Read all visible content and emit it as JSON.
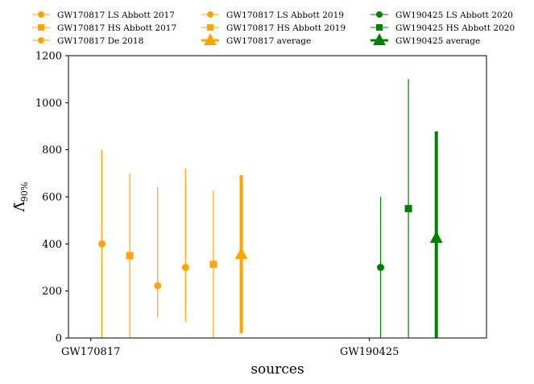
{
  "chart_data": {
    "type": "scatter",
    "xlabel": "sources",
    "ylabel": "Λ̃",
    "ylabel_sub": "90%",
    "ylim": [
      0,
      1200
    ],
    "yticks": [
      "0",
      "200",
      "400",
      "600",
      "800",
      "1000",
      "1200"
    ],
    "ytick_values": [
      0,
      200,
      400,
      600,
      800,
      1000,
      1200
    ],
    "categories": [
      "GW170817",
      "GW190425"
    ],
    "grid": false,
    "legend_position": "top, 3 columns",
    "colors": {
      "GW170817": "#FFA500",
      "GW190425": "#008000"
    },
    "series": [
      {
        "name": "GW170817 LS Abbott 2017",
        "group": "GW170817",
        "marker": "circle",
        "value": 400,
        "low": 0,
        "high": 800,
        "thick": false
      },
      {
        "name": "GW170817 HS Abbott 2017",
        "group": "GW170817",
        "marker": "square",
        "value": 350,
        "low": 0,
        "high": 700,
        "thick": false
      },
      {
        "name": "GW170817 De 2018",
        "group": "GW170817",
        "marker": "circle",
        "value": 222,
        "low": 87,
        "high": 642,
        "thick": false
      },
      {
        "name": "GW170817 LS Abbott 2019",
        "group": "GW170817",
        "marker": "circle",
        "value": 300,
        "low": 70,
        "high": 720,
        "thick": false
      },
      {
        "name": "GW170817 HS Abbott 2019",
        "group": "GW170817",
        "marker": "square",
        "value": 313,
        "low": 0,
        "high": 626,
        "thick": false
      },
      {
        "name": "GW170817 average",
        "group": "GW170817",
        "marker": "triangle",
        "value": 356,
        "low": 20,
        "high": 692,
        "thick": true
      },
      {
        "name": "GW190425 LS Abbott 2020",
        "group": "GW190425",
        "marker": "circle",
        "value": 300,
        "low": 0,
        "high": 600,
        "thick": false
      },
      {
        "name": "GW190425 HS Abbott 2020",
        "group": "GW190425",
        "marker": "square",
        "value": 550,
        "low": 0,
        "high": 1100,
        "thick": false
      },
      {
        "name": "GW190425 average",
        "group": "GW190425",
        "marker": "triangle",
        "value": 425,
        "low": 0,
        "high": 878,
        "thick": true
      }
    ]
  }
}
